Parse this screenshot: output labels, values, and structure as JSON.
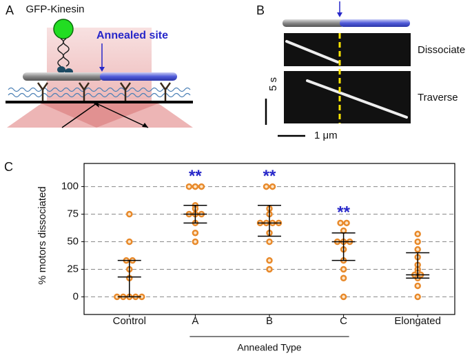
{
  "panel_a": {
    "label": "A",
    "protein": "GFP-Kinesin",
    "site": "Annealed site"
  },
  "panel_b": {
    "label": "B",
    "rows": [
      "Dissociate",
      "Traverse"
    ],
    "time_scale": "5 s",
    "length_scale": "1 μm"
  },
  "panel_c_label": "C",
  "chart_data": {
    "type": "dotplot",
    "ylabel": "% motors dissociated",
    "categories": [
      "Control",
      "A",
      "B",
      "C",
      "Elongated"
    ],
    "group": {
      "label": "Annealed Type",
      "from": 1,
      "to": 3
    },
    "points": [
      [
        75,
        50,
        33,
        33,
        25,
        17,
        0,
        0,
        0,
        0,
        0
      ],
      [
        100,
        100,
        100,
        83,
        80,
        75,
        75,
        75,
        67,
        58,
        50
      ],
      [
        100,
        100,
        80,
        75,
        67,
        67,
        67,
        67,
        58,
        50,
        33,
        25
      ],
      [
        67,
        67,
        60,
        50,
        50,
        50,
        43,
        33,
        25,
        17,
        0
      ],
      [
        57,
        50,
        43,
        36,
        29,
        25,
        22,
        20,
        20,
        17,
        10,
        0
      ]
    ],
    "center": [
      18,
      75,
      67,
      50,
      20
    ],
    "lower": [
      0,
      67,
      55,
      33,
      17
    ],
    "upper": [
      33,
      83,
      83,
      58,
      40
    ],
    "significance": [
      null,
      "**",
      "**",
      "**",
      null
    ],
    "color": "#e8892a",
    "ylim": [
      -16,
      121
    ],
    "yticks": [
      0,
      25,
      50,
      75,
      100
    ],
    "grid": true
  }
}
